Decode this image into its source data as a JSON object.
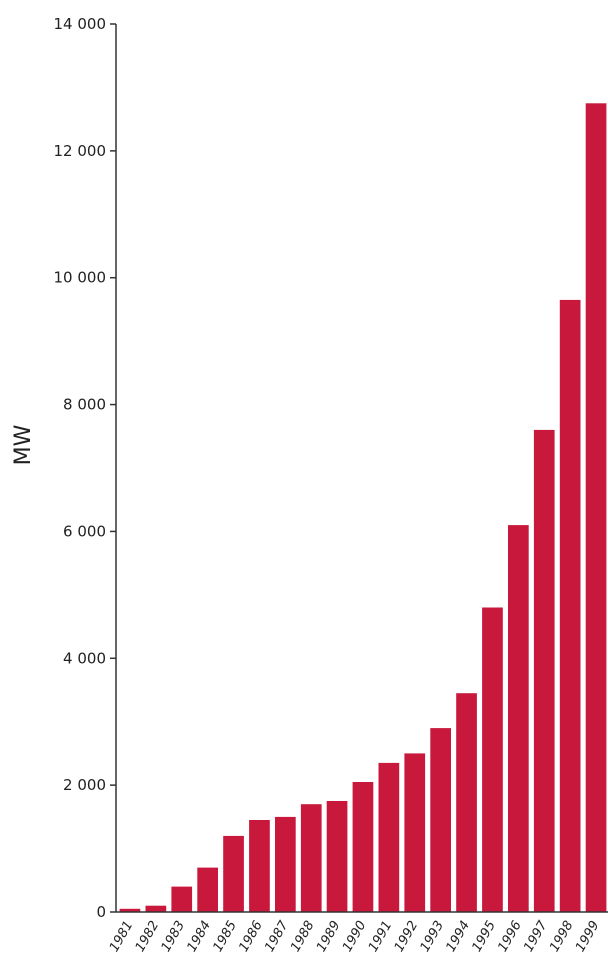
{
  "chart_data": {
    "type": "bar",
    "title": "",
    "xlabel": "",
    "ylabel": "MW",
    "ylim": [
      0,
      14000
    ],
    "yticks": [
      0,
      2000,
      4000,
      6000,
      8000,
      10000,
      12000,
      14000
    ],
    "ytick_labels": [
      "0",
      "2 000",
      "4 000",
      "6 000",
      "8 000",
      "10 000",
      "12 000",
      "14 000"
    ],
    "categories": [
      "1981",
      "1982",
      "1983",
      "1984",
      "1985",
      "1986",
      "1987",
      "1988",
      "1989",
      "1990",
      "1991",
      "1992",
      "1993",
      "1994",
      "1995",
      "1996",
      "1997",
      "1998",
      "1999"
    ],
    "values": [
      50,
      100,
      400,
      700,
      1200,
      1450,
      1500,
      1700,
      1750,
      2050,
      2350,
      2500,
      2900,
      3450,
      4800,
      6100,
      7600,
      9650,
      12750
    ],
    "bar_color": "#c8193c",
    "grid": false,
    "legend": "none"
  }
}
